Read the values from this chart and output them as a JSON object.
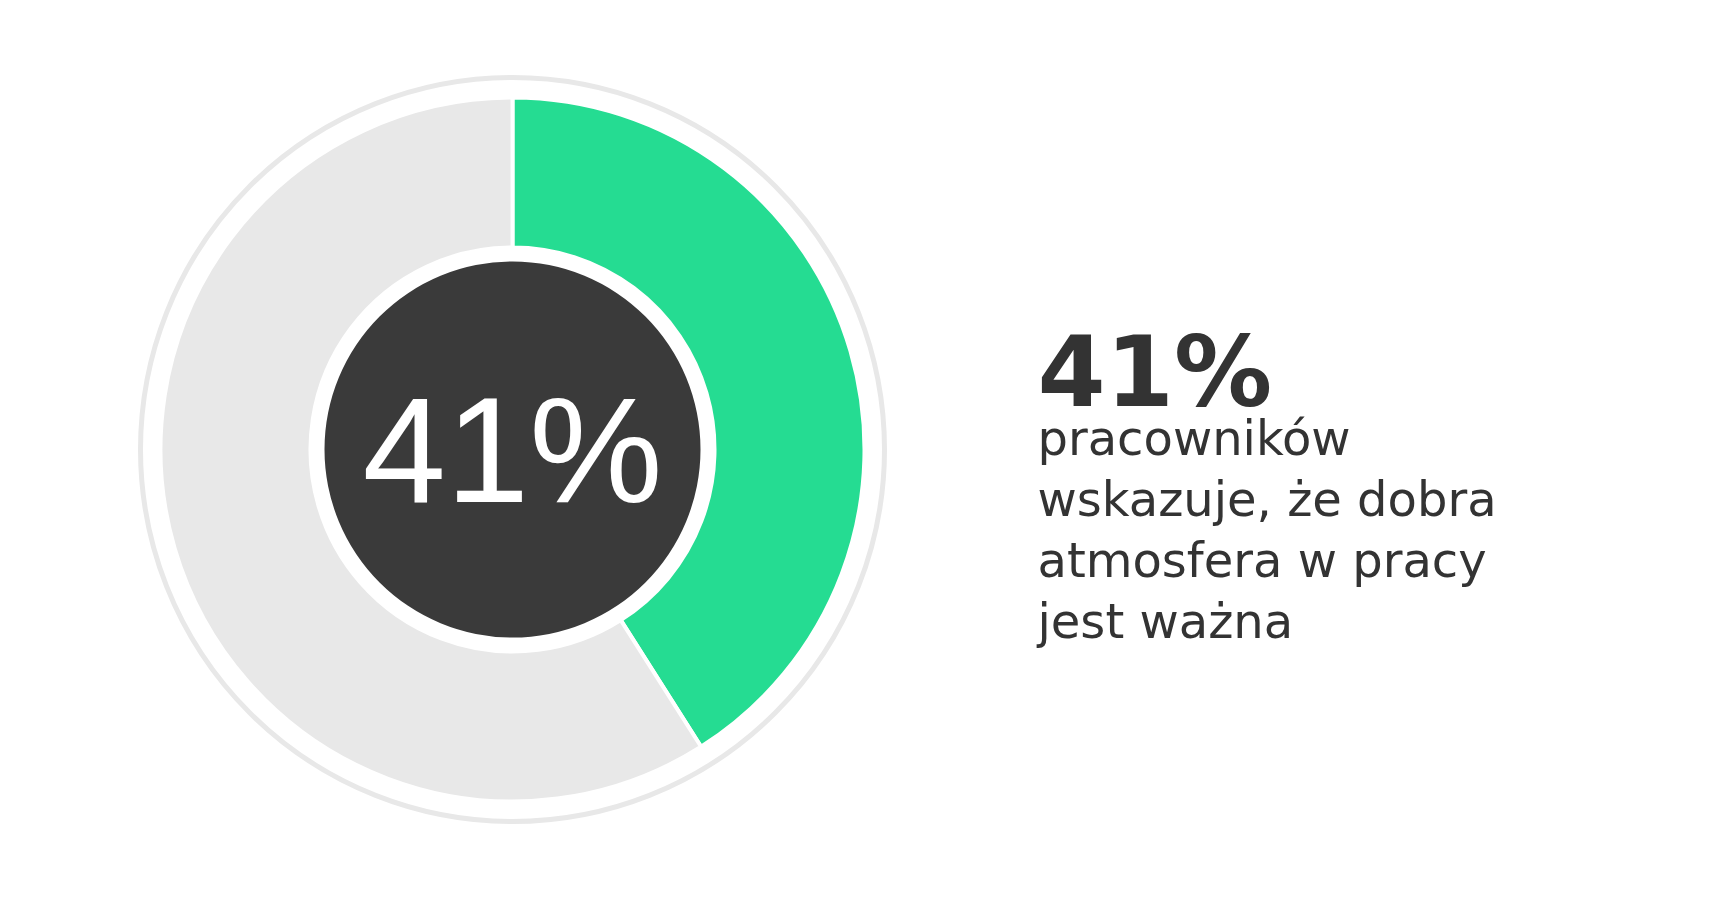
{
  "chart_data": {
    "type": "donut",
    "categories": [
      null,
      null
    ],
    "values": [
      41,
      59
    ],
    "colors": [
      "#25dc92",
      "#e8e8e8"
    ],
    "annotations": [
      "41%",
      "41%",
      "pracowników wskazuje, że dobra atmosfera w pracy jest ważna"
    ]
  }
}
